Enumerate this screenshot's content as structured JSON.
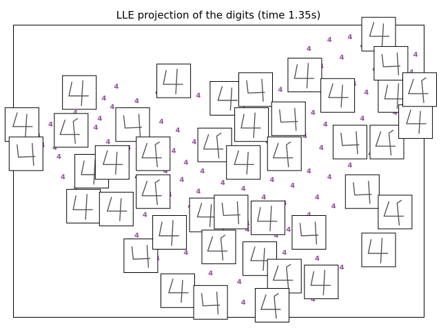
{
  "chart_data": {
    "type": "scatter",
    "title": "LLE projection of the digits (time 1.35s)",
    "xlabel": "",
    "ylabel": "",
    "axes_ticks": false,
    "grid": false,
    "point_label": "4",
    "point_color": "#984ea3",
    "xlim": [
      0,
      1
    ],
    "ylim": [
      0,
      1
    ],
    "series": [
      {
        "label": "4",
        "points": [
          [
            0.03,
            0.54
          ],
          [
            0.06,
            0.62
          ],
          [
            0.07,
            0.59
          ],
          [
            0.09,
            0.66
          ],
          [
            0.1,
            0.58
          ],
          [
            0.11,
            0.55
          ],
          [
            0.12,
            0.63
          ],
          [
            0.13,
            0.67
          ],
          [
            0.14,
            0.74
          ],
          [
            0.15,
            0.7
          ],
          [
            0.16,
            0.61
          ],
          [
            0.17,
            0.73
          ],
          [
            0.18,
            0.78
          ],
          [
            0.19,
            0.55
          ],
          [
            0.2,
            0.65
          ],
          [
            0.21,
            0.68
          ],
          [
            0.22,
            0.75
          ],
          [
            0.23,
            0.6
          ],
          [
            0.24,
            0.72
          ],
          [
            0.25,
            0.79
          ],
          [
            0.26,
            0.52
          ],
          [
            0.27,
            0.66
          ],
          [
            0.28,
            0.58
          ],
          [
            0.29,
            0.71
          ],
          [
            0.3,
            0.48
          ],
          [
            0.31,
            0.62
          ],
          [
            0.32,
            0.7
          ],
          [
            0.33,
            0.55
          ],
          [
            0.34,
            0.45
          ],
          [
            0.35,
            0.6
          ],
          [
            0.36,
            0.67
          ],
          [
            0.37,
            0.5
          ],
          [
            0.38,
            0.42
          ],
          [
            0.39,
            0.57
          ],
          [
            0.4,
            0.64
          ],
          [
            0.41,
            0.47
          ],
          [
            0.42,
            0.53
          ],
          [
            0.43,
            0.38
          ],
          [
            0.44,
            0.6
          ],
          [
            0.45,
            0.43
          ],
          [
            0.46,
            0.5
          ],
          [
            0.47,
            0.35
          ],
          [
            0.48,
            0.56
          ],
          [
            0.49,
            0.62
          ],
          [
            0.5,
            0.4
          ],
          [
            0.51,
            0.46
          ],
          [
            0.52,
            0.33
          ],
          [
            0.53,
            0.52
          ],
          [
            0.54,
            0.58
          ],
          [
            0.55,
            0.37
          ],
          [
            0.56,
            0.44
          ],
          [
            0.57,
            0.3
          ],
          [
            0.58,
            0.49
          ],
          [
            0.59,
            0.55
          ],
          [
            0.6,
            0.34
          ],
          [
            0.61,
            0.41
          ],
          [
            0.62,
            0.6
          ],
          [
            0.63,
            0.47
          ],
          [
            0.64,
            0.28
          ],
          [
            0.65,
            0.53
          ],
          [
            0.66,
            0.39
          ],
          [
            0.67,
            0.66
          ],
          [
            0.68,
            0.45
          ],
          [
            0.69,
            0.57
          ],
          [
            0.7,
            0.32
          ],
          [
            0.71,
            0.62
          ],
          [
            0.72,
            0.5
          ],
          [
            0.73,
            0.7
          ],
          [
            0.74,
            0.41
          ],
          [
            0.75,
            0.58
          ],
          [
            0.76,
            0.66
          ],
          [
            0.77,
            0.48
          ],
          [
            0.78,
            0.74
          ],
          [
            0.79,
            0.55
          ],
          [
            0.8,
            0.63
          ],
          [
            0.81,
            0.72
          ],
          [
            0.82,
            0.52
          ],
          [
            0.83,
            0.8
          ],
          [
            0.84,
            0.6
          ],
          [
            0.85,
            0.68
          ],
          [
            0.86,
            0.77
          ],
          [
            0.87,
            0.56
          ],
          [
            0.88,
            0.85
          ],
          [
            0.89,
            0.64
          ],
          [
            0.9,
            0.74
          ],
          [
            0.91,
            0.82
          ],
          [
            0.92,
            0.6
          ],
          [
            0.93,
            0.7
          ],
          [
            0.94,
            0.88
          ],
          [
            0.95,
            0.78
          ],
          [
            0.96,
            0.66
          ],
          [
            0.97,
            0.84
          ],
          [
            0.98,
            0.9
          ],
          [
            0.99,
            0.76
          ],
          [
            0.45,
            0.1
          ],
          [
            0.48,
            0.15
          ],
          [
            0.55,
            0.12
          ],
          [
            0.58,
            0.18
          ],
          [
            0.63,
            0.08
          ],
          [
            0.68,
            0.14
          ],
          [
            0.74,
            0.2
          ],
          [
            0.77,
            0.1
          ],
          [
            0.52,
            0.22
          ],
          [
            0.6,
            0.25
          ],
          [
            0.66,
            0.22
          ],
          [
            0.71,
            0.27
          ],
          [
            0.75,
            0.3
          ],
          [
            0.56,
            0.05
          ],
          [
            0.65,
            0.03
          ],
          [
            0.73,
            0.06
          ],
          [
            0.8,
            0.17
          ],
          [
            0.35,
            0.2
          ],
          [
            0.4,
            0.26
          ],
          [
            0.44,
            0.3
          ],
          [
            0.3,
            0.28
          ],
          [
            0.25,
            0.33
          ],
          [
            0.2,
            0.38
          ],
          [
            0.15,
            0.44
          ],
          [
            0.12,
            0.48
          ],
          [
            0.18,
            0.42
          ],
          [
            0.22,
            0.46
          ],
          [
            0.28,
            0.4
          ],
          [
            0.32,
            0.35
          ],
          [
            0.36,
            0.31
          ],
          [
            0.42,
            0.22
          ],
          [
            0.5,
            0.28
          ],
          [
            0.57,
            0.32
          ],
          [
            0.62,
            0.36
          ],
          [
            0.67,
            0.3
          ],
          [
            0.72,
            0.35
          ],
          [
            0.78,
            0.38
          ],
          [
            0.83,
            0.42
          ],
          [
            0.88,
            0.47
          ],
          [
            0.93,
            0.55
          ],
          [
            0.97,
            0.62
          ],
          [
            0.7,
            0.82
          ],
          [
            0.75,
            0.86
          ],
          [
            0.8,
            0.89
          ],
          [
            0.85,
            0.93
          ],
          [
            0.65,
            0.78
          ],
          [
            0.6,
            0.73
          ],
          [
            0.55,
            0.68
          ],
          [
            0.5,
            0.72
          ],
          [
            0.45,
            0.76
          ],
          [
            0.4,
            0.8
          ],
          [
            0.35,
            0.77
          ],
          [
            0.3,
            0.74
          ],
          [
            0.68,
            0.88
          ],
          [
            0.72,
            0.92
          ],
          [
            0.77,
            0.95
          ],
          [
            0.82,
            0.96
          ]
        ]
      }
    ],
    "image_thumbnails": [
      [
        0.16,
        0.77
      ],
      [
        0.02,
        0.66
      ],
      [
        0.03,
        0.56
      ],
      [
        0.14,
        0.64
      ],
      [
        0.19,
        0.5
      ],
      [
        0.24,
        0.53
      ],
      [
        0.29,
        0.66
      ],
      [
        0.34,
        0.56
      ],
      [
        0.39,
        0.81
      ],
      [
        0.52,
        0.75
      ],
      [
        0.59,
        0.78
      ],
      [
        0.49,
        0.59
      ],
      [
        0.58,
        0.66
      ],
      [
        0.56,
        0.53
      ],
      [
        0.67,
        0.68
      ],
      [
        0.66,
        0.56
      ],
      [
        0.71,
        0.83
      ],
      [
        0.79,
        0.76
      ],
      [
        0.82,
        0.6
      ],
      [
        0.91,
        0.6
      ],
      [
        0.93,
        0.76
      ],
      [
        0.98,
        0.67
      ],
      [
        0.85,
        0.43
      ],
      [
        0.93,
        0.36
      ],
      [
        0.17,
        0.38
      ],
      [
        0.25,
        0.37
      ],
      [
        0.31,
        0.21
      ],
      [
        0.34,
        0.43
      ],
      [
        0.38,
        0.29
      ],
      [
        0.47,
        0.35
      ],
      [
        0.53,
        0.36
      ],
      [
        0.5,
        0.24
      ],
      [
        0.62,
        0.34
      ],
      [
        0.6,
        0.2
      ],
      [
        0.72,
        0.29
      ],
      [
        0.66,
        0.14
      ],
      [
        0.75,
        0.12
      ],
      [
        0.4,
        0.09
      ],
      [
        0.48,
        0.05
      ],
      [
        0.63,
        0.04
      ],
      [
        0.89,
        0.23
      ],
      [
        0.89,
        0.97
      ],
      [
        0.92,
        0.87
      ],
      [
        0.99,
        0.78
      ]
    ]
  }
}
